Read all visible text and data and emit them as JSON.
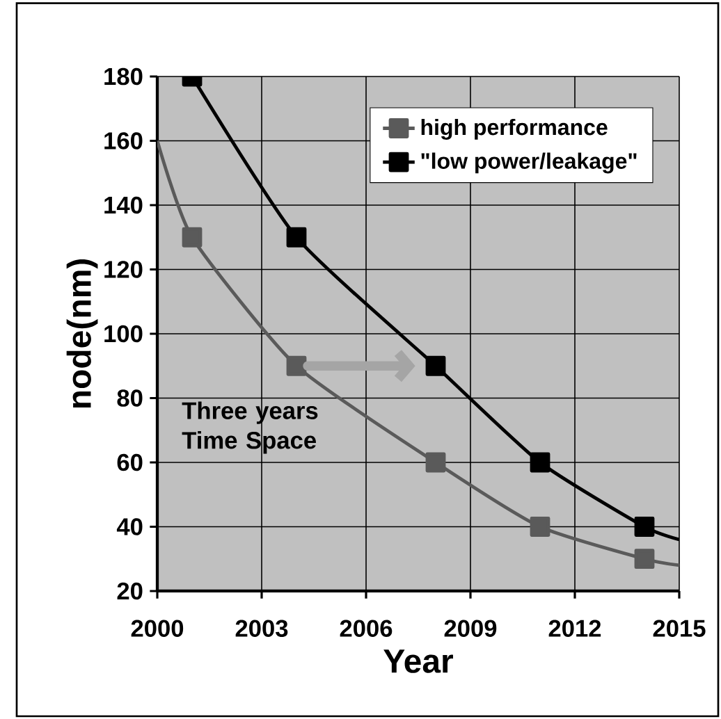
{
  "chart_data": {
    "type": "line",
    "xlabel": "Year",
    "ylabel": "node(nm)",
    "xlim": [
      2000,
      2015
    ],
    "xticks": [
      2000,
      2003,
      2006,
      2009,
      2012,
      2015
    ],
    "ylim": [
      20,
      180
    ],
    "yticks": [
      20,
      40,
      60,
      80,
      100,
      120,
      140,
      160,
      180
    ],
    "grid": true,
    "legend": "top right",
    "marker": "square",
    "series": [
      {
        "name": "high performance",
        "color": "#5a5a5a",
        "x": [
          2000,
          2001,
          2004,
          2008,
          2011,
          2014,
          2015
        ],
        "values": [
          160,
          130,
          90,
          60,
          40,
          30,
          28
        ]
      },
      {
        "name": "\"low power/leakage\"",
        "color": "#000000",
        "x": [
          2001,
          2004,
          2008,
          2011,
          2014,
          2015
        ],
        "values": [
          180,
          130,
          90,
          60,
          40,
          36
        ]
      }
    ],
    "annotations": [
      {
        "text": "Three years Time Space",
        "x": 2004,
        "y": 90
      }
    ]
  }
}
